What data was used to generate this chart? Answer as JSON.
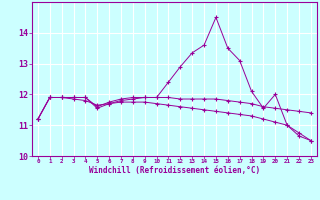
{
  "xlabel": "Windchill (Refroidissement éolien,°C)",
  "x": [
    0,
    1,
    2,
    3,
    4,
    5,
    6,
    7,
    8,
    9,
    10,
    11,
    12,
    13,
    14,
    15,
    16,
    17,
    18,
    19,
    20,
    21,
    22,
    23
  ],
  "line1": [
    11.2,
    11.9,
    11.9,
    11.9,
    11.9,
    11.55,
    11.7,
    11.8,
    11.85,
    11.9,
    11.9,
    12.4,
    12.9,
    13.35,
    13.6,
    14.5,
    13.5,
    13.1,
    12.1,
    11.55,
    12.0,
    11.0,
    10.65,
    10.5
  ],
  "line2": [
    11.2,
    11.9,
    11.9,
    11.9,
    11.9,
    11.6,
    11.75,
    11.85,
    11.9,
    11.9,
    11.9,
    11.9,
    11.85,
    11.85,
    11.85,
    11.85,
    11.8,
    11.75,
    11.7,
    11.6,
    11.55,
    11.5,
    11.45,
    11.4
  ],
  "line3": [
    11.2,
    11.9,
    11.9,
    11.85,
    11.8,
    11.65,
    11.7,
    11.75,
    11.75,
    11.75,
    11.7,
    11.65,
    11.6,
    11.55,
    11.5,
    11.45,
    11.4,
    11.35,
    11.3,
    11.2,
    11.1,
    11.0,
    10.75,
    10.5
  ],
  "line_color": "#990099",
  "bg_color": "#ccffff",
  "grid_color": "#ffffff",
  "ylim": [
    10.0,
    15.0
  ],
  "yticks": [
    10,
    11,
    12,
    13,
    14
  ],
  "xlim": [
    -0.5,
    23.5
  ]
}
